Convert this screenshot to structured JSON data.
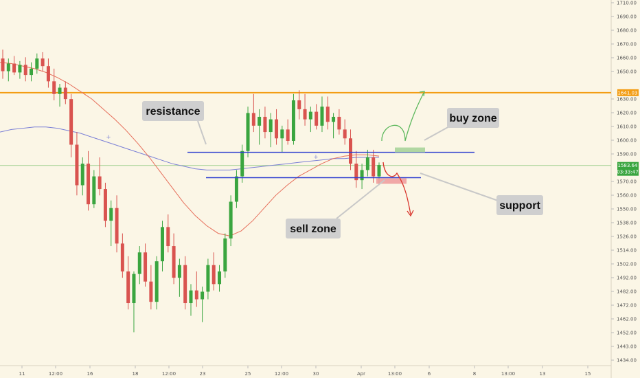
{
  "chart_data": {
    "type": "candlestick",
    "y_axis": {
      "ticks": [
        "1710.00",
        "1690.00",
        "1680.00",
        "1670.00",
        "1660.00",
        "1650.00",
        "1641.03",
        "1630.00",
        "1620.00",
        "1610.00",
        "1600.00",
        "1590.00",
        "1583.64",
        "1570.00",
        "1560.00",
        "1550.00",
        "1538.00",
        "1526.00",
        "1514.00",
        "1502.00",
        "1492.00",
        "1482.00",
        "1472.00",
        "1462.00",
        "1452.00",
        "1443.00",
        "1434.00"
      ],
      "ylim": [
        1430,
        1712
      ]
    },
    "x_axis": {
      "ticks": [
        "11",
        "12:00",
        "16",
        "18",
        "12:00",
        "23",
        "25",
        "12:00",
        "30",
        "Apr",
        "13:00",
        "6",
        "8",
        "13:00",
        "13",
        "15"
      ]
    },
    "price_labels": {
      "horizontal_level": "1641.03",
      "current_price": "1583.64",
      "countdown": "03:33:47"
    },
    "levels": {
      "horizontal_orange": 1641.03,
      "current_price": 1583.64,
      "resistance": 1594,
      "support": 1574
    },
    "candles": [
      {
        "o": 1668,
        "h": 1675,
        "l": 1652,
        "c": 1658
      },
      {
        "o": 1658,
        "h": 1668,
        "l": 1650,
        "c": 1664
      },
      {
        "o": 1664,
        "h": 1670,
        "l": 1655,
        "c": 1657
      },
      {
        "o": 1657,
        "h": 1666,
        "l": 1652,
        "c": 1663
      },
      {
        "o": 1663,
        "h": 1669,
        "l": 1650,
        "c": 1655
      },
      {
        "o": 1655,
        "h": 1665,
        "l": 1650,
        "c": 1660
      },
      {
        "o": 1660,
        "h": 1672,
        "l": 1656,
        "c": 1668
      },
      {
        "o": 1668,
        "h": 1673,
        "l": 1658,
        "c": 1662
      },
      {
        "o": 1662,
        "h": 1668,
        "l": 1645,
        "c": 1650
      },
      {
        "o": 1650,
        "h": 1660,
        "l": 1635,
        "c": 1640
      },
      {
        "o": 1640,
        "h": 1648,
        "l": 1630,
        "c": 1645
      },
      {
        "o": 1645,
        "h": 1650,
        "l": 1632,
        "c": 1636
      },
      {
        "o": 1636,
        "h": 1640,
        "l": 1590,
        "c": 1600
      },
      {
        "o": 1600,
        "h": 1610,
        "l": 1560,
        "c": 1568
      },
      {
        "o": 1568,
        "h": 1590,
        "l": 1560,
        "c": 1585
      },
      {
        "o": 1585,
        "h": 1595,
        "l": 1548,
        "c": 1553
      },
      {
        "o": 1553,
        "h": 1580,
        "l": 1550,
        "c": 1575
      },
      {
        "o": 1575,
        "h": 1590,
        "l": 1560,
        "c": 1565
      },
      {
        "o": 1565,
        "h": 1570,
        "l": 1535,
        "c": 1540
      },
      {
        "o": 1540,
        "h": 1556,
        "l": 1520,
        "c": 1550
      },
      {
        "o": 1550,
        "h": 1560,
        "l": 1515,
        "c": 1522
      },
      {
        "o": 1522,
        "h": 1530,
        "l": 1495,
        "c": 1500
      },
      {
        "o": 1500,
        "h": 1512,
        "l": 1470,
        "c": 1475
      },
      {
        "o": 1475,
        "h": 1500,
        "l": 1452,
        "c": 1498
      },
      {
        "o": 1498,
        "h": 1520,
        "l": 1490,
        "c": 1515
      },
      {
        "o": 1515,
        "h": 1522,
        "l": 1488,
        "c": 1492
      },
      {
        "o": 1492,
        "h": 1505,
        "l": 1470,
        "c": 1476
      },
      {
        "o": 1476,
        "h": 1512,
        "l": 1470,
        "c": 1508
      },
      {
        "o": 1508,
        "h": 1540,
        "l": 1500,
        "c": 1535
      },
      {
        "o": 1535,
        "h": 1545,
        "l": 1515,
        "c": 1520
      },
      {
        "o": 1520,
        "h": 1530,
        "l": 1490,
        "c": 1495
      },
      {
        "o": 1495,
        "h": 1510,
        "l": 1480,
        "c": 1505
      },
      {
        "o": 1505,
        "h": 1512,
        "l": 1470,
        "c": 1475
      },
      {
        "o": 1475,
        "h": 1490,
        "l": 1465,
        "c": 1485
      },
      {
        "o": 1485,
        "h": 1500,
        "l": 1472,
        "c": 1478
      },
      {
        "o": 1478,
        "h": 1488,
        "l": 1460,
        "c": 1484
      },
      {
        "o": 1484,
        "h": 1510,
        "l": 1478,
        "c": 1505
      },
      {
        "o": 1505,
        "h": 1515,
        "l": 1485,
        "c": 1490
      },
      {
        "o": 1490,
        "h": 1505,
        "l": 1484,
        "c": 1500
      },
      {
        "o": 1500,
        "h": 1530,
        "l": 1495,
        "c": 1526
      },
      {
        "o": 1526,
        "h": 1560,
        "l": 1520,
        "c": 1555
      },
      {
        "o": 1555,
        "h": 1580,
        "l": 1550,
        "c": 1575
      },
      {
        "o": 1575,
        "h": 1600,
        "l": 1570,
        "c": 1595
      },
      {
        "o": 1595,
        "h": 1630,
        "l": 1590,
        "c": 1625
      },
      {
        "o": 1625,
        "h": 1640,
        "l": 1610,
        "c": 1615
      },
      {
        "o": 1615,
        "h": 1628,
        "l": 1600,
        "c": 1622
      },
      {
        "o": 1622,
        "h": 1630,
        "l": 1605,
        "c": 1610
      },
      {
        "o": 1610,
        "h": 1625,
        "l": 1598,
        "c": 1620
      },
      {
        "o": 1620,
        "h": 1628,
        "l": 1600,
        "c": 1605
      },
      {
        "o": 1605,
        "h": 1615,
        "l": 1594,
        "c": 1612
      },
      {
        "o": 1612,
        "h": 1620,
        "l": 1600,
        "c": 1603
      },
      {
        "o": 1603,
        "h": 1640,
        "l": 1600,
        "c": 1635
      },
      {
        "o": 1635,
        "h": 1643,
        "l": 1620,
        "c": 1628
      },
      {
        "o": 1628,
        "h": 1640,
        "l": 1615,
        "c": 1620
      },
      {
        "o": 1620,
        "h": 1630,
        "l": 1610,
        "c": 1626
      },
      {
        "o": 1626,
        "h": 1632,
        "l": 1612,
        "c": 1615
      },
      {
        "o": 1615,
        "h": 1638,
        "l": 1610,
        "c": 1630
      },
      {
        "o": 1630,
        "h": 1638,
        "l": 1612,
        "c": 1618
      },
      {
        "o": 1618,
        "h": 1625,
        "l": 1605,
        "c": 1622
      },
      {
        "o": 1622,
        "h": 1628,
        "l": 1608,
        "c": 1612
      },
      {
        "o": 1612,
        "h": 1620,
        "l": 1600,
        "c": 1605
      },
      {
        "o": 1605,
        "h": 1612,
        "l": 1580,
        "c": 1585
      },
      {
        "o": 1585,
        "h": 1595,
        "l": 1566,
        "c": 1572
      },
      {
        "o": 1572,
        "h": 1585,
        "l": 1565,
        "c": 1580
      },
      {
        "o": 1580,
        "h": 1596,
        "l": 1575,
        "c": 1590
      },
      {
        "o": 1590,
        "h": 1596,
        "l": 1570,
        "c": 1575
      },
      {
        "o": 1575,
        "h": 1586,
        "l": 1568,
        "c": 1584
      }
    ],
    "ma_red": [
      1665,
      1664,
      1662,
      1660,
      1657,
      1653,
      1648,
      1642,
      1636,
      1628,
      1620,
      1611,
      1601,
      1590,
      1578,
      1566,
      1554,
      1544,
      1536,
      1530,
      1528,
      1532,
      1540,
      1550,
      1560,
      1568,
      1575,
      1580,
      1585,
      1589,
      1591,
      1592,
      1592,
      1591
    ],
    "ma_blue": [
      1610,
      1612,
      1613,
      1614,
      1614,
      1613,
      1611,
      1609,
      1606,
      1603,
      1600,
      1597,
      1594,
      1591,
      1588,
      1585,
      1583,
      1581,
      1580,
      1580,
      1580,
      1581,
      1582,
      1583,
      1584,
      1585,
      1586,
      1587,
      1588,
      1589,
      1589,
      1590,
      1590,
      1590
    ],
    "annotations": {
      "resistance": "resistance",
      "support": "support",
      "buy_zone": "buy zone",
      "sell_zone": "sell zone"
    },
    "colors": {
      "background": "#fbf6e6",
      "up_candle": "#3aa53f",
      "down_candle": "#d9534f",
      "orange_level": "#f39c12",
      "blue_level": "#2f3fd0",
      "ma_red": "#e66e5a",
      "ma_blue": "#7a7fd6",
      "buy_zone": "#a8d49a",
      "sell_zone": "#f0a0a0",
      "buy_arrow": "#5cb85c",
      "sell_arrow": "#d9342b"
    }
  }
}
